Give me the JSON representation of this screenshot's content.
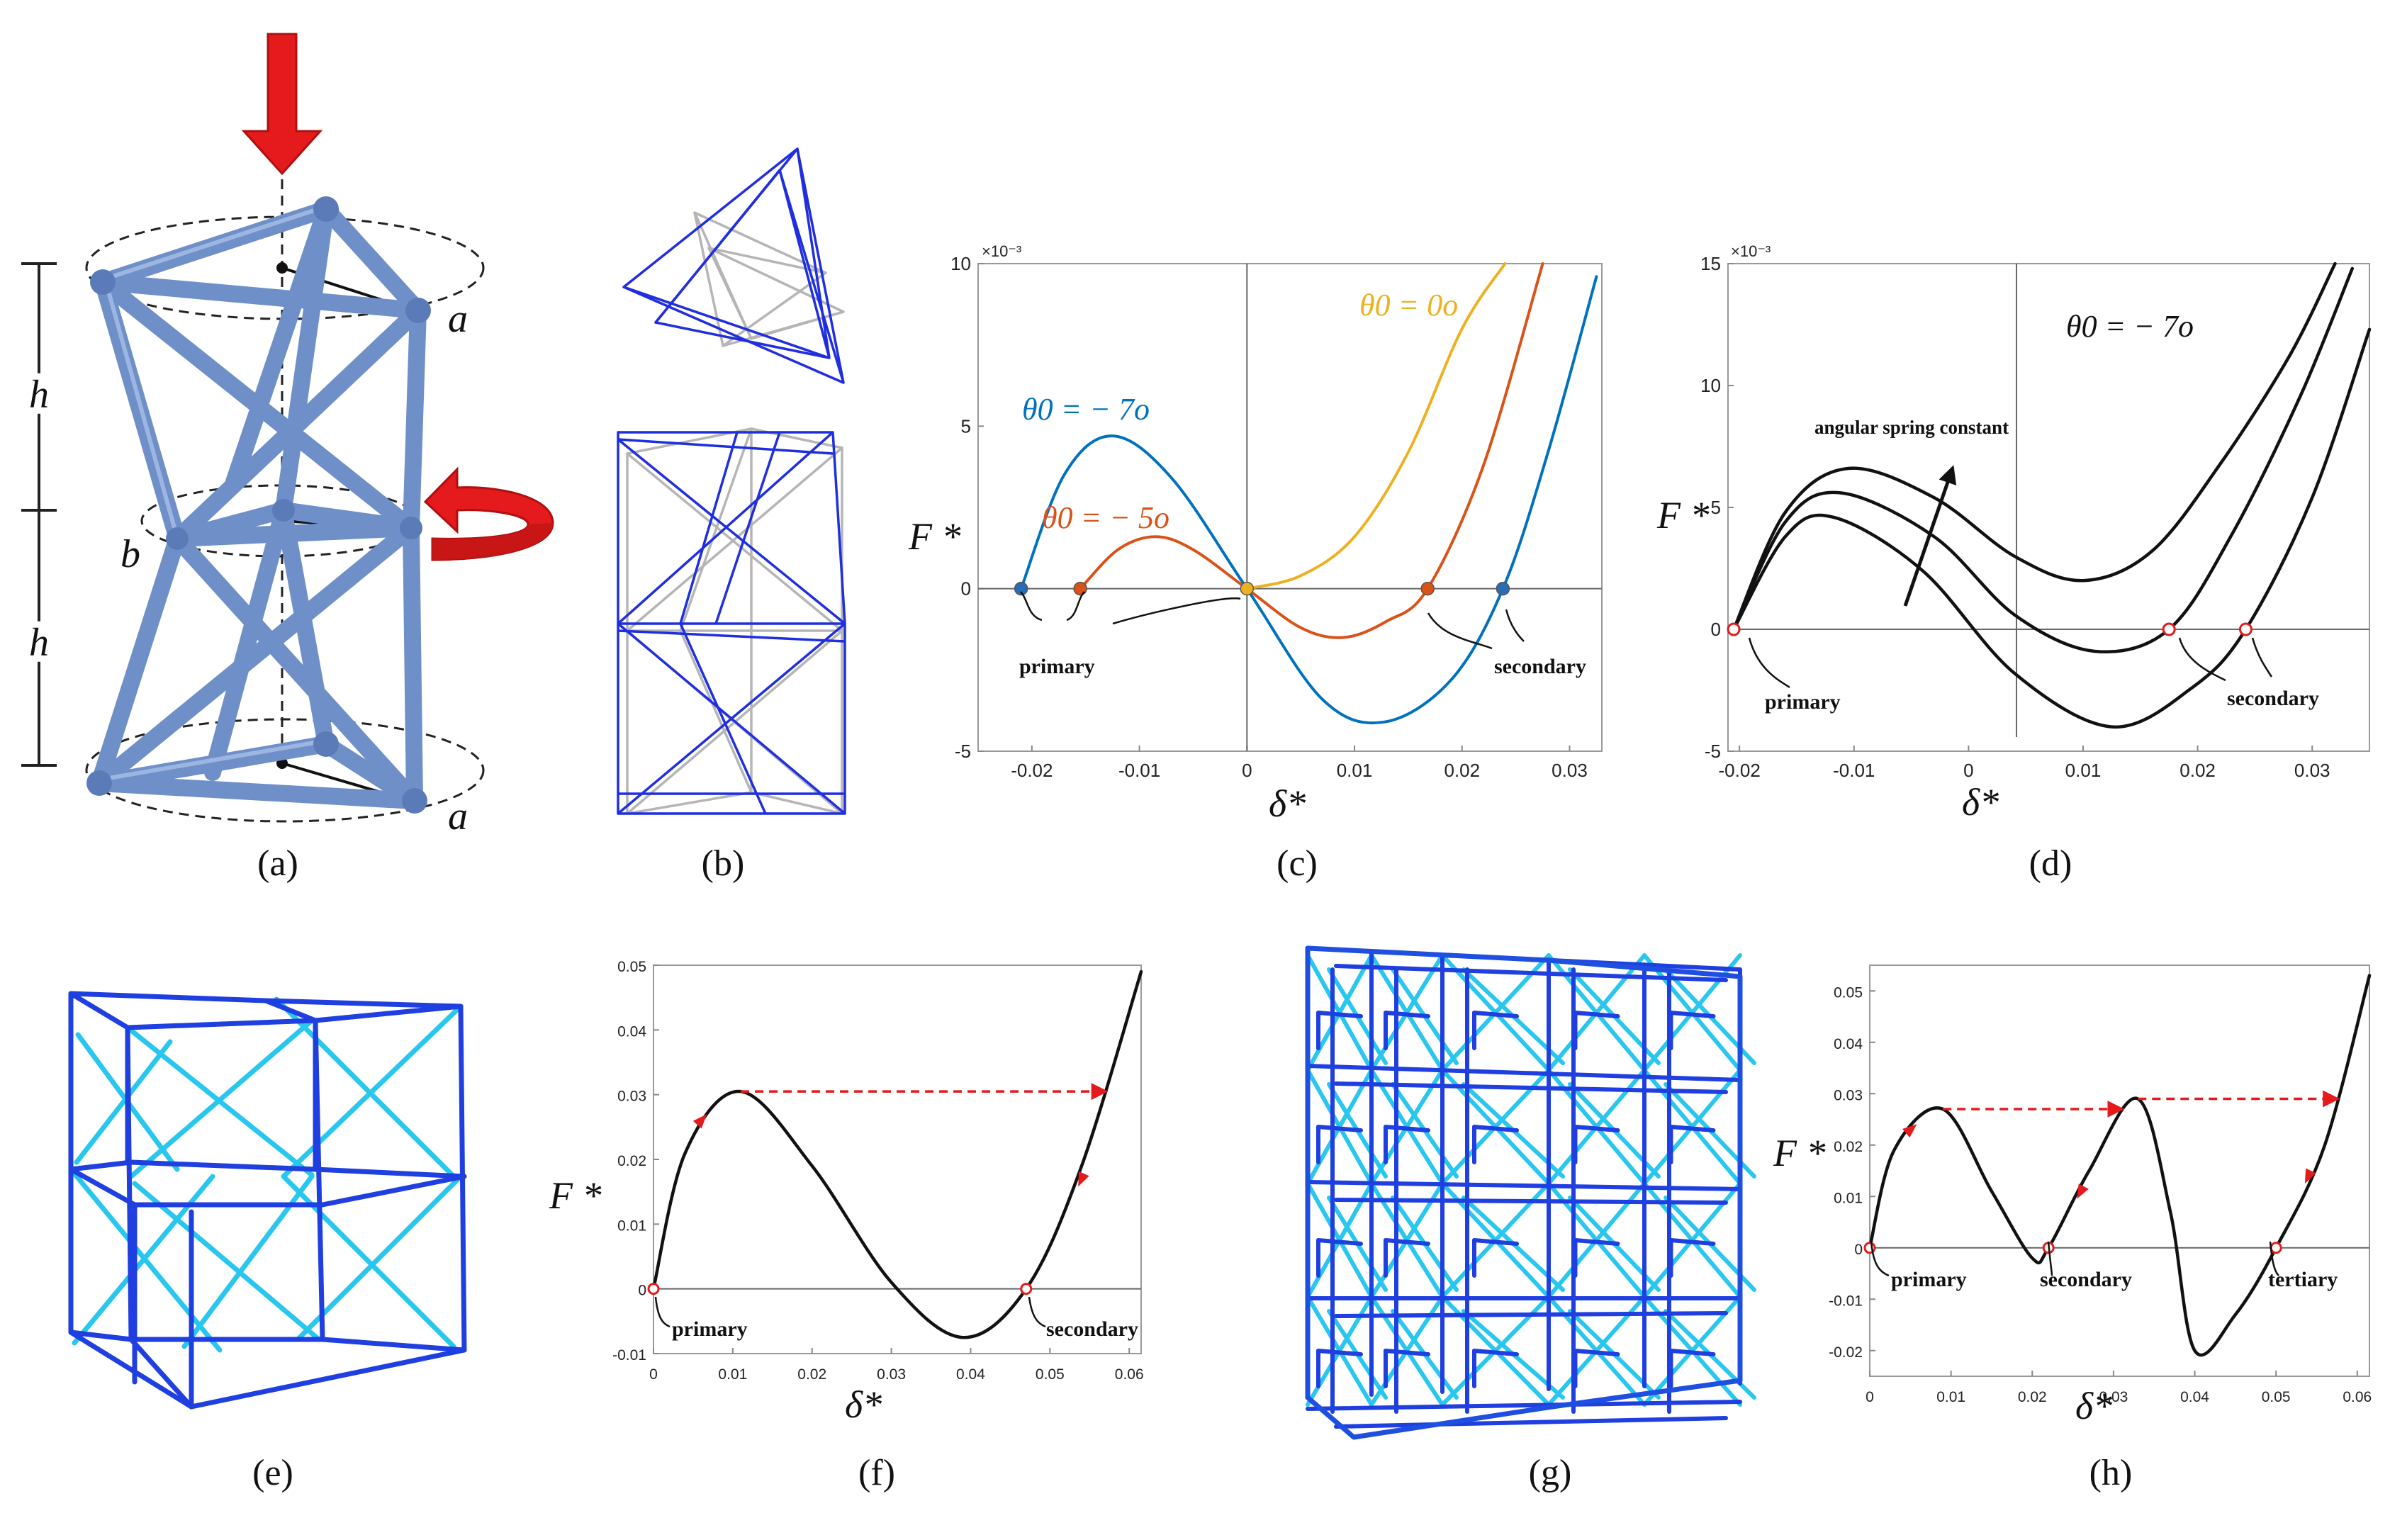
{
  "captions": [
    "(a)",
    "(b)",
    "(c)",
    "(d)",
    "(e)",
    "(f)",
    "(g)",
    "(h)"
  ],
  "panel_a": {
    "labels": {
      "h1": "h",
      "h2": "h",
      "a_top": "a",
      "a_bottom": "a",
      "b": "b"
    },
    "icons": [
      "down-arrow-icon",
      "rotation-arrow-icon"
    ],
    "colors": {
      "strut": "#6f8fc8",
      "arrow": "#e41a1c"
    }
  },
  "panel_b": {
    "colors": {
      "deformed": "#1f2ee0",
      "reference": "#b5b5b5"
    }
  },
  "panel_c": {
    "y_exponent": "×10⁻³",
    "x_label": "δ*",
    "y_label": "F *",
    "annotations": {
      "primary": "primary",
      "secondary": "secondary"
    },
    "series_labels": {
      "s0": "θ0 = 0o",
      "s5": "θ0 = − 5o",
      "s7": "θ0 = − 7o"
    }
  },
  "panel_d": {
    "y_exponent": "×10⁻³",
    "x_label": "δ*",
    "y_label": "F *",
    "theta_label": "θ0 = − 7o",
    "arrow_label": "angular spring constant",
    "annotations": {
      "primary": "primary",
      "secondary": "secondary"
    }
  },
  "panel_e": {
    "colors": {
      "frame": "#1f3fe0",
      "diagonal": "#29c6ee"
    }
  },
  "panel_f": {
    "x_label": "δ*",
    "y_label": "F *",
    "annotations": {
      "primary": "primary",
      "secondary": "secondary"
    }
  },
  "panel_g": {
    "colors": {
      "frame": "#1f3fe0",
      "diagonal": "#29c6ee"
    }
  },
  "panel_h": {
    "x_label": "δ*",
    "y_label": "F *",
    "annotations": {
      "primary": "primary",
      "secondary": "secondary",
      "tertiary": "tertiary"
    }
  },
  "chart_data": [
    {
      "panel": "c",
      "type": "line",
      "xlim": [
        -0.025,
        0.033
      ],
      "ylim": [
        -5,
        10
      ],
      "y_scale_note": "×10⁻³",
      "x_ticks": [
        "-0.02",
        "-0.01",
        "0",
        "0.01",
        "0.02",
        "0.03"
      ],
      "y_ticks": [
        "-5",
        "0",
        "5",
        "10"
      ],
      "grid": false,
      "series": [
        {
          "name": "θ0 = 0o",
          "color": "#edb120",
          "x": [
            0,
            0.005,
            0.01,
            0.015,
            0.02,
            0.024
          ],
          "y": [
            0,
            0.4,
            1.6,
            4.2,
            8.0,
            10.0
          ]
        },
        {
          "name": "θ0 = − 5o",
          "color": "#d95319",
          "x": [
            -0.0155,
            -0.012,
            -0.0085,
            -0.005,
            0,
            0.005,
            0.009,
            0.013,
            0.0168,
            0.022,
            0.0275
          ],
          "y": [
            0,
            1.2,
            1.6,
            1.2,
            0,
            -1.2,
            -1.5,
            -1.0,
            0,
            3.8,
            10.0
          ]
        },
        {
          "name": "θ0 = − 7o",
          "color": "#0072bd",
          "x": [
            -0.021,
            -0.017,
            -0.0125,
            -0.007,
            0,
            0.007,
            0.0128,
            0.019,
            0.0238,
            0.028,
            0.0325
          ],
          "y": [
            0,
            3.5,
            4.7,
            3.4,
            0,
            -3.4,
            -4.1,
            -2.8,
            0,
            4.2,
            9.6
          ]
        }
      ],
      "markers": [
        {
          "x": -0.021,
          "y": 0,
          "color": "#2a6db5"
        },
        {
          "x": -0.0155,
          "y": 0,
          "color": "#d95319"
        },
        {
          "x": 0,
          "y": 0,
          "color": "#edb120"
        },
        {
          "x": 0.0168,
          "y": 0,
          "color": "#d95319"
        },
        {
          "x": 0.0238,
          "y": 0,
          "color": "#2a6db5"
        }
      ]
    },
    {
      "panel": "d",
      "type": "line",
      "xlim": [
        -0.021,
        0.035
      ],
      "ylim": [
        -5,
        15
      ],
      "y_scale_note": "×10⁻³",
      "x_ticks": [
        "-0.02",
        "-0.01",
        "0",
        "0.01",
        "0.02",
        "0.03"
      ],
      "y_ticks": [
        "-5",
        "0",
        "5",
        "10",
        "15"
      ],
      "grid": false,
      "series": [
        {
          "x": [
            -0.0205,
            -0.016,
            -0.0105,
            -0.003,
            0.004,
            0.01,
            0.016,
            0.022,
            0.028,
            0.032
          ],
          "y": [
            0,
            4.8,
            6.6,
            5.4,
            3.0,
            2.0,
            3.2,
            6.8,
            11.2,
            15.0
          ]
        },
        {
          "x": [
            -0.0205,
            -0.016,
            -0.0112,
            -0.003,
            0.004,
            0.011,
            0.0175,
            0.023,
            0.029,
            0.0335
          ],
          "y": [
            0,
            4.4,
            5.6,
            3.8,
            0.6,
            -0.9,
            0,
            3.9,
            9.6,
            14.8
          ]
        },
        {
          "x": [
            -0.0205,
            -0.016,
            -0.0118,
            -0.004,
            0.004,
            0.0125,
            0.0195,
            0.0242,
            0.03,
            0.035
          ],
          "y": [
            0,
            3.8,
            4.6,
            2.4,
            -1.8,
            -4.0,
            -2.4,
            0,
            5.4,
            12.3
          ]
        }
      ],
      "markers": [
        {
          "x": -0.0205,
          "y": 0
        },
        {
          "x": 0.0175,
          "y": 0
        },
        {
          "x": 0.0242,
          "y": 0
        }
      ]
    },
    {
      "panel": "f",
      "type": "line",
      "xlim": [
        0,
        0.0615
      ],
      "ylim": [
        -0.01,
        0.05
      ],
      "x_ticks": [
        "0",
        "0.01",
        "0.02",
        "0.03",
        "0.04",
        "0.05",
        "0.06"
      ],
      "y_ticks": [
        "-0.01",
        "0",
        "0.01",
        "0.02",
        "0.03",
        "0.04",
        "0.05"
      ],
      "grid": false,
      "series": [
        {
          "x": [
            0,
            0.004,
            0.011,
            0.02,
            0.03,
            0.039,
            0.047,
            0.054,
            0.0615
          ],
          "y": [
            0,
            0.021,
            0.0305,
            0.019,
            0.001,
            -0.0075,
            0,
            0.019,
            0.049
          ]
        }
      ],
      "markers": [
        {
          "x": 0,
          "y": 0
        },
        {
          "x": 0.047,
          "y": 0
        }
      ],
      "jump": {
        "from": [
          0.011,
          0.0305
        ],
        "to": [
          0.057,
          0.0305
        ]
      },
      "direction_arrows": [
        {
          "x": 0.006,
          "y": 0.026
        },
        {
          "x": 0.054,
          "y": 0.017
        }
      ]
    },
    {
      "panel": "h",
      "type": "line",
      "xlim": [
        0,
        0.0615
      ],
      "ylim": [
        -0.025,
        0.055
      ],
      "x_ticks": [
        "0",
        "0.01",
        "0.02",
        "0.03",
        "0.04",
        "0.05",
        "0.06"
      ],
      "y_ticks": [
        "-0.02",
        "-0.01",
        "0",
        "0.01",
        "0.02",
        "0.03",
        "0.04",
        "0.05"
      ],
      "grid": false,
      "series": [
        {
          "x": [
            0,
            0.003,
            0.009,
            0.015,
            0.02,
            0.022,
            0.027,
            0.033,
            0.037,
            0.04,
            0.045,
            0.05,
            0.056,
            0.0615
          ],
          "y": [
            0,
            0.019,
            0.027,
            0.011,
            -0.002,
            0,
            0.015,
            0.029,
            0.007,
            -0.02,
            -0.013,
            0,
            0.02,
            0.053
          ]
        }
      ],
      "markers": [
        {
          "x": 0,
          "y": 0
        },
        {
          "x": 0.022,
          "y": 0
        },
        {
          "x": 0.05,
          "y": 0
        }
      ],
      "jumps": [
        {
          "from": [
            0.009,
            0.027
          ],
          "to": [
            0.031,
            0.027
          ]
        },
        {
          "from": [
            0.033,
            0.029
          ],
          "to": [
            0.0575,
            0.029
          ]
        }
      ],
      "direction_arrows": [
        {
          "x": 0.005,
          "y": 0.023
        },
        {
          "x": 0.026,
          "y": 0.011
        },
        {
          "x": 0.054,
          "y": 0.014
        }
      ]
    }
  ]
}
